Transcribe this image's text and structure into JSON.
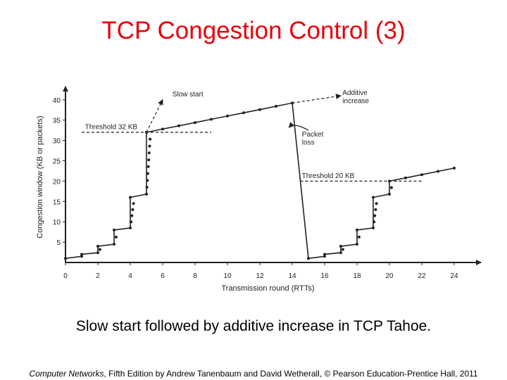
{
  "slide": {
    "title": "TCP Congestion Control (3)",
    "caption": "Slow start followed by additive increase in TCP Tahoe.",
    "footer_book": "Computer Networks",
    "footer_rest": ", Fifth Edition by Andrew Tanenbaum and David Wetherall, © Pearson Education-Prentice Hall, 2011"
  },
  "colors": {
    "title": "#e8000b",
    "ink": "#222222"
  },
  "chart_data": {
    "type": "line",
    "title": "",
    "xlabel": "Transmission round (RTTs)",
    "ylabel": "Congestion window (KB or packets)",
    "xlim": [
      0,
      25
    ],
    "ylim": [
      0,
      42
    ],
    "xticks": [
      0,
      2,
      4,
      6,
      8,
      10,
      12,
      14,
      16,
      18,
      20,
      22,
      24
    ],
    "yticks": [
      5,
      10,
      15,
      20,
      25,
      30,
      35,
      40
    ],
    "series": [
      {
        "name": "Congestion window",
        "style": "solid",
        "points": [
          [
            0,
            1
          ],
          [
            1,
            1.5
          ],
          [
            1,
            2
          ],
          [
            2,
            2.4
          ],
          [
            2,
            4
          ],
          [
            3,
            4.5
          ],
          [
            3,
            8
          ],
          [
            4,
            8.5
          ],
          [
            4,
            16
          ],
          [
            5,
            16.8
          ],
          [
            5,
            32
          ],
          [
            6,
            32.8
          ],
          [
            7,
            33.6
          ],
          [
            8,
            34.4
          ],
          [
            9,
            35.2
          ],
          [
            10,
            36
          ],
          [
            11,
            36.8
          ],
          [
            12,
            37.6
          ],
          [
            13,
            38.4
          ],
          [
            14,
            39.2
          ],
          [
            15,
            1
          ],
          [
            16,
            1.5
          ],
          [
            16,
            2
          ],
          [
            17,
            2.4
          ],
          [
            17,
            4
          ],
          [
            18,
            4.5
          ],
          [
            18,
            8
          ],
          [
            19,
            8.5
          ],
          [
            19,
            16
          ],
          [
            20,
            16.8
          ],
          [
            20,
            20
          ],
          [
            21,
            20.8
          ],
          [
            22,
            21.6
          ],
          [
            23,
            22.4
          ],
          [
            24,
            23.2
          ]
        ]
      },
      {
        "name": "Slow start",
        "style": "dashed",
        "points": [
          [
            5,
            32
          ],
          [
            6,
            40
          ]
        ]
      },
      {
        "name": "Additive increase",
        "style": "dashed",
        "points": [
          [
            14,
            39.2
          ],
          [
            17,
            41
          ]
        ]
      },
      {
        "name": "Threshold 32 KB",
        "style": "dashed",
        "points": [
          [
            1,
            32
          ],
          [
            9,
            32
          ]
        ]
      },
      {
        "name": "Threshold 20 KB",
        "style": "dashed",
        "points": [
          [
            14.5,
            20
          ],
          [
            22,
            20
          ]
        ]
      }
    ],
    "annotations": {
      "slow_start": "Slow start",
      "additive_line1": "Additive",
      "additive_line2": "increase",
      "threshold1": "Threshold 32 KB",
      "threshold2": "Threshold 20 KB",
      "packet_loss_line1": "Packet",
      "packet_loss_line2": "loss"
    }
  }
}
